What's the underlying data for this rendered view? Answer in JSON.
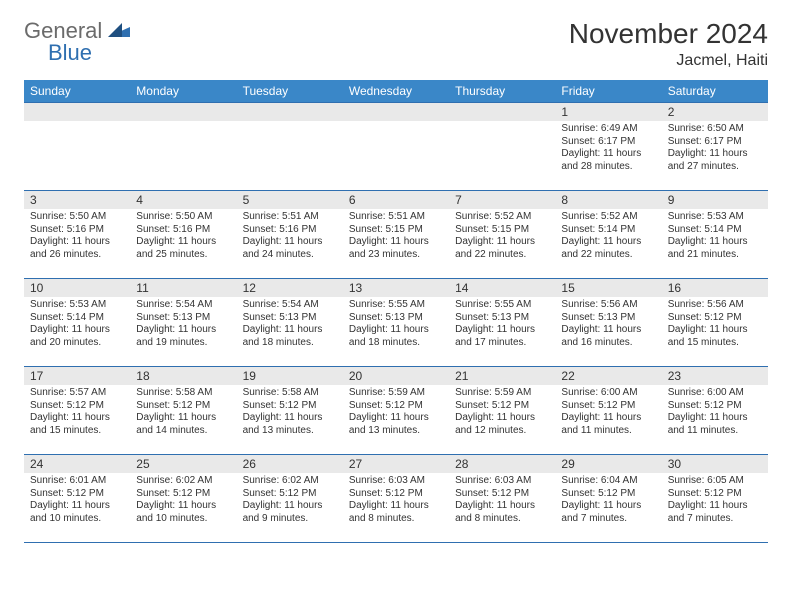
{
  "logo": {
    "general": "General",
    "blue": "Blue"
  },
  "title": "November 2024",
  "location": "Jacmel, Haiti",
  "colors": {
    "header_bg": "#3a87c8",
    "header_text": "#ffffff",
    "rule": "#2f6fb0",
    "daynum_bg": "#e9e9e9",
    "body_text": "#333333",
    "logo_gray": "#6b6b6b",
    "logo_blue": "#2f6fb0"
  },
  "day_headers": [
    "Sunday",
    "Monday",
    "Tuesday",
    "Wednesday",
    "Thursday",
    "Friday",
    "Saturday"
  ],
  "weeks": [
    [
      null,
      null,
      null,
      null,
      null,
      {
        "n": "1",
        "sunrise": "Sunrise: 6:49 AM",
        "sunset": "Sunset: 6:17 PM",
        "daylight": "Daylight: 11 hours and 28 minutes."
      },
      {
        "n": "2",
        "sunrise": "Sunrise: 6:50 AM",
        "sunset": "Sunset: 6:17 PM",
        "daylight": "Daylight: 11 hours and 27 minutes."
      }
    ],
    [
      {
        "n": "3",
        "sunrise": "Sunrise: 5:50 AM",
        "sunset": "Sunset: 5:16 PM",
        "daylight": "Daylight: 11 hours and 26 minutes."
      },
      {
        "n": "4",
        "sunrise": "Sunrise: 5:50 AM",
        "sunset": "Sunset: 5:16 PM",
        "daylight": "Daylight: 11 hours and 25 minutes."
      },
      {
        "n": "5",
        "sunrise": "Sunrise: 5:51 AM",
        "sunset": "Sunset: 5:16 PM",
        "daylight": "Daylight: 11 hours and 24 minutes."
      },
      {
        "n": "6",
        "sunrise": "Sunrise: 5:51 AM",
        "sunset": "Sunset: 5:15 PM",
        "daylight": "Daylight: 11 hours and 23 minutes."
      },
      {
        "n": "7",
        "sunrise": "Sunrise: 5:52 AM",
        "sunset": "Sunset: 5:15 PM",
        "daylight": "Daylight: 11 hours and 22 minutes."
      },
      {
        "n": "8",
        "sunrise": "Sunrise: 5:52 AM",
        "sunset": "Sunset: 5:14 PM",
        "daylight": "Daylight: 11 hours and 22 minutes."
      },
      {
        "n": "9",
        "sunrise": "Sunrise: 5:53 AM",
        "sunset": "Sunset: 5:14 PM",
        "daylight": "Daylight: 11 hours and 21 minutes."
      }
    ],
    [
      {
        "n": "10",
        "sunrise": "Sunrise: 5:53 AM",
        "sunset": "Sunset: 5:14 PM",
        "daylight": "Daylight: 11 hours and 20 minutes."
      },
      {
        "n": "11",
        "sunrise": "Sunrise: 5:54 AM",
        "sunset": "Sunset: 5:13 PM",
        "daylight": "Daylight: 11 hours and 19 minutes."
      },
      {
        "n": "12",
        "sunrise": "Sunrise: 5:54 AM",
        "sunset": "Sunset: 5:13 PM",
        "daylight": "Daylight: 11 hours and 18 minutes."
      },
      {
        "n": "13",
        "sunrise": "Sunrise: 5:55 AM",
        "sunset": "Sunset: 5:13 PM",
        "daylight": "Daylight: 11 hours and 18 minutes."
      },
      {
        "n": "14",
        "sunrise": "Sunrise: 5:55 AM",
        "sunset": "Sunset: 5:13 PM",
        "daylight": "Daylight: 11 hours and 17 minutes."
      },
      {
        "n": "15",
        "sunrise": "Sunrise: 5:56 AM",
        "sunset": "Sunset: 5:13 PM",
        "daylight": "Daylight: 11 hours and 16 minutes."
      },
      {
        "n": "16",
        "sunrise": "Sunrise: 5:56 AM",
        "sunset": "Sunset: 5:12 PM",
        "daylight": "Daylight: 11 hours and 15 minutes."
      }
    ],
    [
      {
        "n": "17",
        "sunrise": "Sunrise: 5:57 AM",
        "sunset": "Sunset: 5:12 PM",
        "daylight": "Daylight: 11 hours and 15 minutes."
      },
      {
        "n": "18",
        "sunrise": "Sunrise: 5:58 AM",
        "sunset": "Sunset: 5:12 PM",
        "daylight": "Daylight: 11 hours and 14 minutes."
      },
      {
        "n": "19",
        "sunrise": "Sunrise: 5:58 AM",
        "sunset": "Sunset: 5:12 PM",
        "daylight": "Daylight: 11 hours and 13 minutes."
      },
      {
        "n": "20",
        "sunrise": "Sunrise: 5:59 AM",
        "sunset": "Sunset: 5:12 PM",
        "daylight": "Daylight: 11 hours and 13 minutes."
      },
      {
        "n": "21",
        "sunrise": "Sunrise: 5:59 AM",
        "sunset": "Sunset: 5:12 PM",
        "daylight": "Daylight: 11 hours and 12 minutes."
      },
      {
        "n": "22",
        "sunrise": "Sunrise: 6:00 AM",
        "sunset": "Sunset: 5:12 PM",
        "daylight": "Daylight: 11 hours and 11 minutes."
      },
      {
        "n": "23",
        "sunrise": "Sunrise: 6:00 AM",
        "sunset": "Sunset: 5:12 PM",
        "daylight": "Daylight: 11 hours and 11 minutes."
      }
    ],
    [
      {
        "n": "24",
        "sunrise": "Sunrise: 6:01 AM",
        "sunset": "Sunset: 5:12 PM",
        "daylight": "Daylight: 11 hours and 10 minutes."
      },
      {
        "n": "25",
        "sunrise": "Sunrise: 6:02 AM",
        "sunset": "Sunset: 5:12 PM",
        "daylight": "Daylight: 11 hours and 10 minutes."
      },
      {
        "n": "26",
        "sunrise": "Sunrise: 6:02 AM",
        "sunset": "Sunset: 5:12 PM",
        "daylight": "Daylight: 11 hours and 9 minutes."
      },
      {
        "n": "27",
        "sunrise": "Sunrise: 6:03 AM",
        "sunset": "Sunset: 5:12 PM",
        "daylight": "Daylight: 11 hours and 8 minutes."
      },
      {
        "n": "28",
        "sunrise": "Sunrise: 6:03 AM",
        "sunset": "Sunset: 5:12 PM",
        "daylight": "Daylight: 11 hours and 8 minutes."
      },
      {
        "n": "29",
        "sunrise": "Sunrise: 6:04 AM",
        "sunset": "Sunset: 5:12 PM",
        "daylight": "Daylight: 11 hours and 7 minutes."
      },
      {
        "n": "30",
        "sunrise": "Sunrise: 6:05 AM",
        "sunset": "Sunset: 5:12 PM",
        "daylight": "Daylight: 11 hours and 7 minutes."
      }
    ]
  ]
}
